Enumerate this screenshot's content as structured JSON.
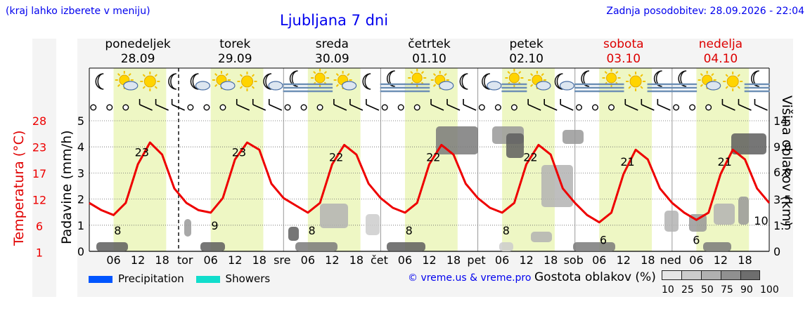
{
  "header": {
    "left_note": "(kraj lahko izberete v meniju)",
    "title": "Ljubljana 7 dni",
    "updated": "Zadnja posodobitev: 28.09.2026 - 22:04"
  },
  "days": [
    {
      "name": "ponedeljek",
      "date": "28.09",
      "weekend": false,
      "abbr": ""
    },
    {
      "name": "torek",
      "date": "29.09",
      "weekend": false,
      "abbr": "tor"
    },
    {
      "name": "sreda",
      "date": "30.09",
      "weekend": false,
      "abbr": "sre"
    },
    {
      "name": "četrtek",
      "date": "01.10",
      "weekend": false,
      "abbr": "čet"
    },
    {
      "name": "petek",
      "date": "02.10",
      "weekend": false,
      "abbr": "pet"
    },
    {
      "name": "sobota",
      "date": "03.10",
      "weekend": true,
      "abbr": "sob"
    },
    {
      "name": "nedelja",
      "date": "04.10",
      "weekend": true,
      "abbr": "ned"
    }
  ],
  "hour_ticks": [
    "06",
    "12",
    "18"
  ],
  "icons_per_day": [
    [
      "moon-icon",
      "sun-cloud-icon",
      "sun-icon",
      "moon-icon"
    ],
    [
      "moon-cloud-icon",
      "sun-cloud-icon",
      "sun-icon",
      "moon-cloud-icon"
    ],
    [
      "moon-fog-icon",
      "sun-fog-icon",
      "sun-cloud-icon",
      "moon-icon"
    ],
    [
      "moon-fog-icon",
      "sun-fog-icon",
      "sun-cloud-icon",
      "moon-icon"
    ],
    [
      "moon-cloud-icon",
      "sun-fog-icon",
      "sun-cloud-icon",
      "moon-cloud-icon"
    ],
    [
      "moon-fog-icon",
      "sun-fog-icon",
      "sun-icon",
      "moon-fog-icon"
    ],
    [
      "moon-fog-icon",
      "sun-cloud-icon",
      "sun-icon",
      "moon-fog-icon"
    ]
  ],
  "axes": {
    "temperature_label": "Temperatura (°C)",
    "precip_label": "Padavine (mm/h)",
    "cloud_label": "Višina oblakov (km)",
    "temperature_ticks": [
      "28",
      "23",
      "17",
      "12",
      "6",
      "1"
    ],
    "precip_ticks": [
      "5",
      "4",
      "3",
      "2",
      "1",
      "0"
    ],
    "cloud_ticks": [
      "14",
      "9.0",
      "6.0",
      "3.5",
      "1.5",
      "0"
    ]
  },
  "legend": {
    "precipitation": "Precipitation",
    "showers": "Showers",
    "credit": "© vreme.us & vreme.pro",
    "density_title": "Gostota oblakov (%)",
    "density_levels": [
      "10",
      "25",
      "50",
      "75",
      "90",
      "100"
    ],
    "colors": {
      "precipitation": "#0055ff",
      "showers": "#11ddcc"
    }
  },
  "colors": {
    "temperature_line": "#ee0000",
    "day_shading": "#eef7c4",
    "weekend_text": "#dd0000",
    "link_text": "#0000ee"
  },
  "chart_data": {
    "type": "line",
    "title": "Ljubljana 7 dni",
    "x_unit": "hours from 28.09 00:00",
    "xlim": [
      0,
      168
    ],
    "temperature": {
      "ylim": [
        1,
        28
      ],
      "x": [
        0,
        3,
        6,
        9,
        12,
        15,
        18,
        21,
        24,
        27,
        30,
        33,
        36,
        39,
        42,
        45,
        48,
        51,
        54,
        57,
        60,
        63,
        66,
        69,
        72,
        75,
        78,
        81,
        84,
        87,
        90,
        93,
        96,
        99,
        102,
        105,
        108,
        111,
        114,
        117,
        120,
        123,
        126,
        129,
        132,
        135,
        138,
        141,
        144,
        147,
        150,
        153,
        156,
        159,
        162,
        165,
        168
      ],
      "values": [
        11,
        9.5,
        8.5,
        11,
        19,
        23.5,
        21,
        14,
        11,
        9.5,
        9,
        12,
        20,
        23.5,
        22,
        15,
        12,
        10.5,
        9,
        11,
        19,
        23,
        21,
        15,
        12,
        10,
        9,
        11,
        19,
        23,
        21,
        15,
        12,
        10,
        9,
        11,
        19,
        23,
        21,
        14,
        11,
        8.5,
        7,
        9,
        17,
        22,
        20,
        14,
        11,
        9,
        7.5,
        9,
        17,
        22,
        20,
        14,
        11
      ],
      "labels": [
        {
          "x": 7,
          "value": "8"
        },
        {
          "x": 13,
          "value": "23"
        },
        {
          "x": 31,
          "value": "9"
        },
        {
          "x": 37,
          "value": "23"
        },
        {
          "x": 55,
          "value": "8"
        },
        {
          "x": 61,
          "value": "22"
        },
        {
          "x": 79,
          "value": "8"
        },
        {
          "x": 85,
          "value": "22"
        },
        {
          "x": 103,
          "value": "8"
        },
        {
          "x": 109,
          "value": "22"
        },
        {
          "x": 127,
          "value": "6"
        },
        {
          "x": 133,
          "value": "21"
        },
        {
          "x": 150,
          "value": "6"
        },
        {
          "x": 157,
          "value": "21"
        },
        {
          "x": 166,
          "value": "10"
        }
      ]
    },
    "precipitation": {
      "ylim": [
        0,
        5
      ],
      "values": []
    },
    "cloud_height_km": {
      "ticks": [
        0,
        1.5,
        3.5,
        6.0,
        9.0,
        14
      ]
    },
    "grid": true
  }
}
